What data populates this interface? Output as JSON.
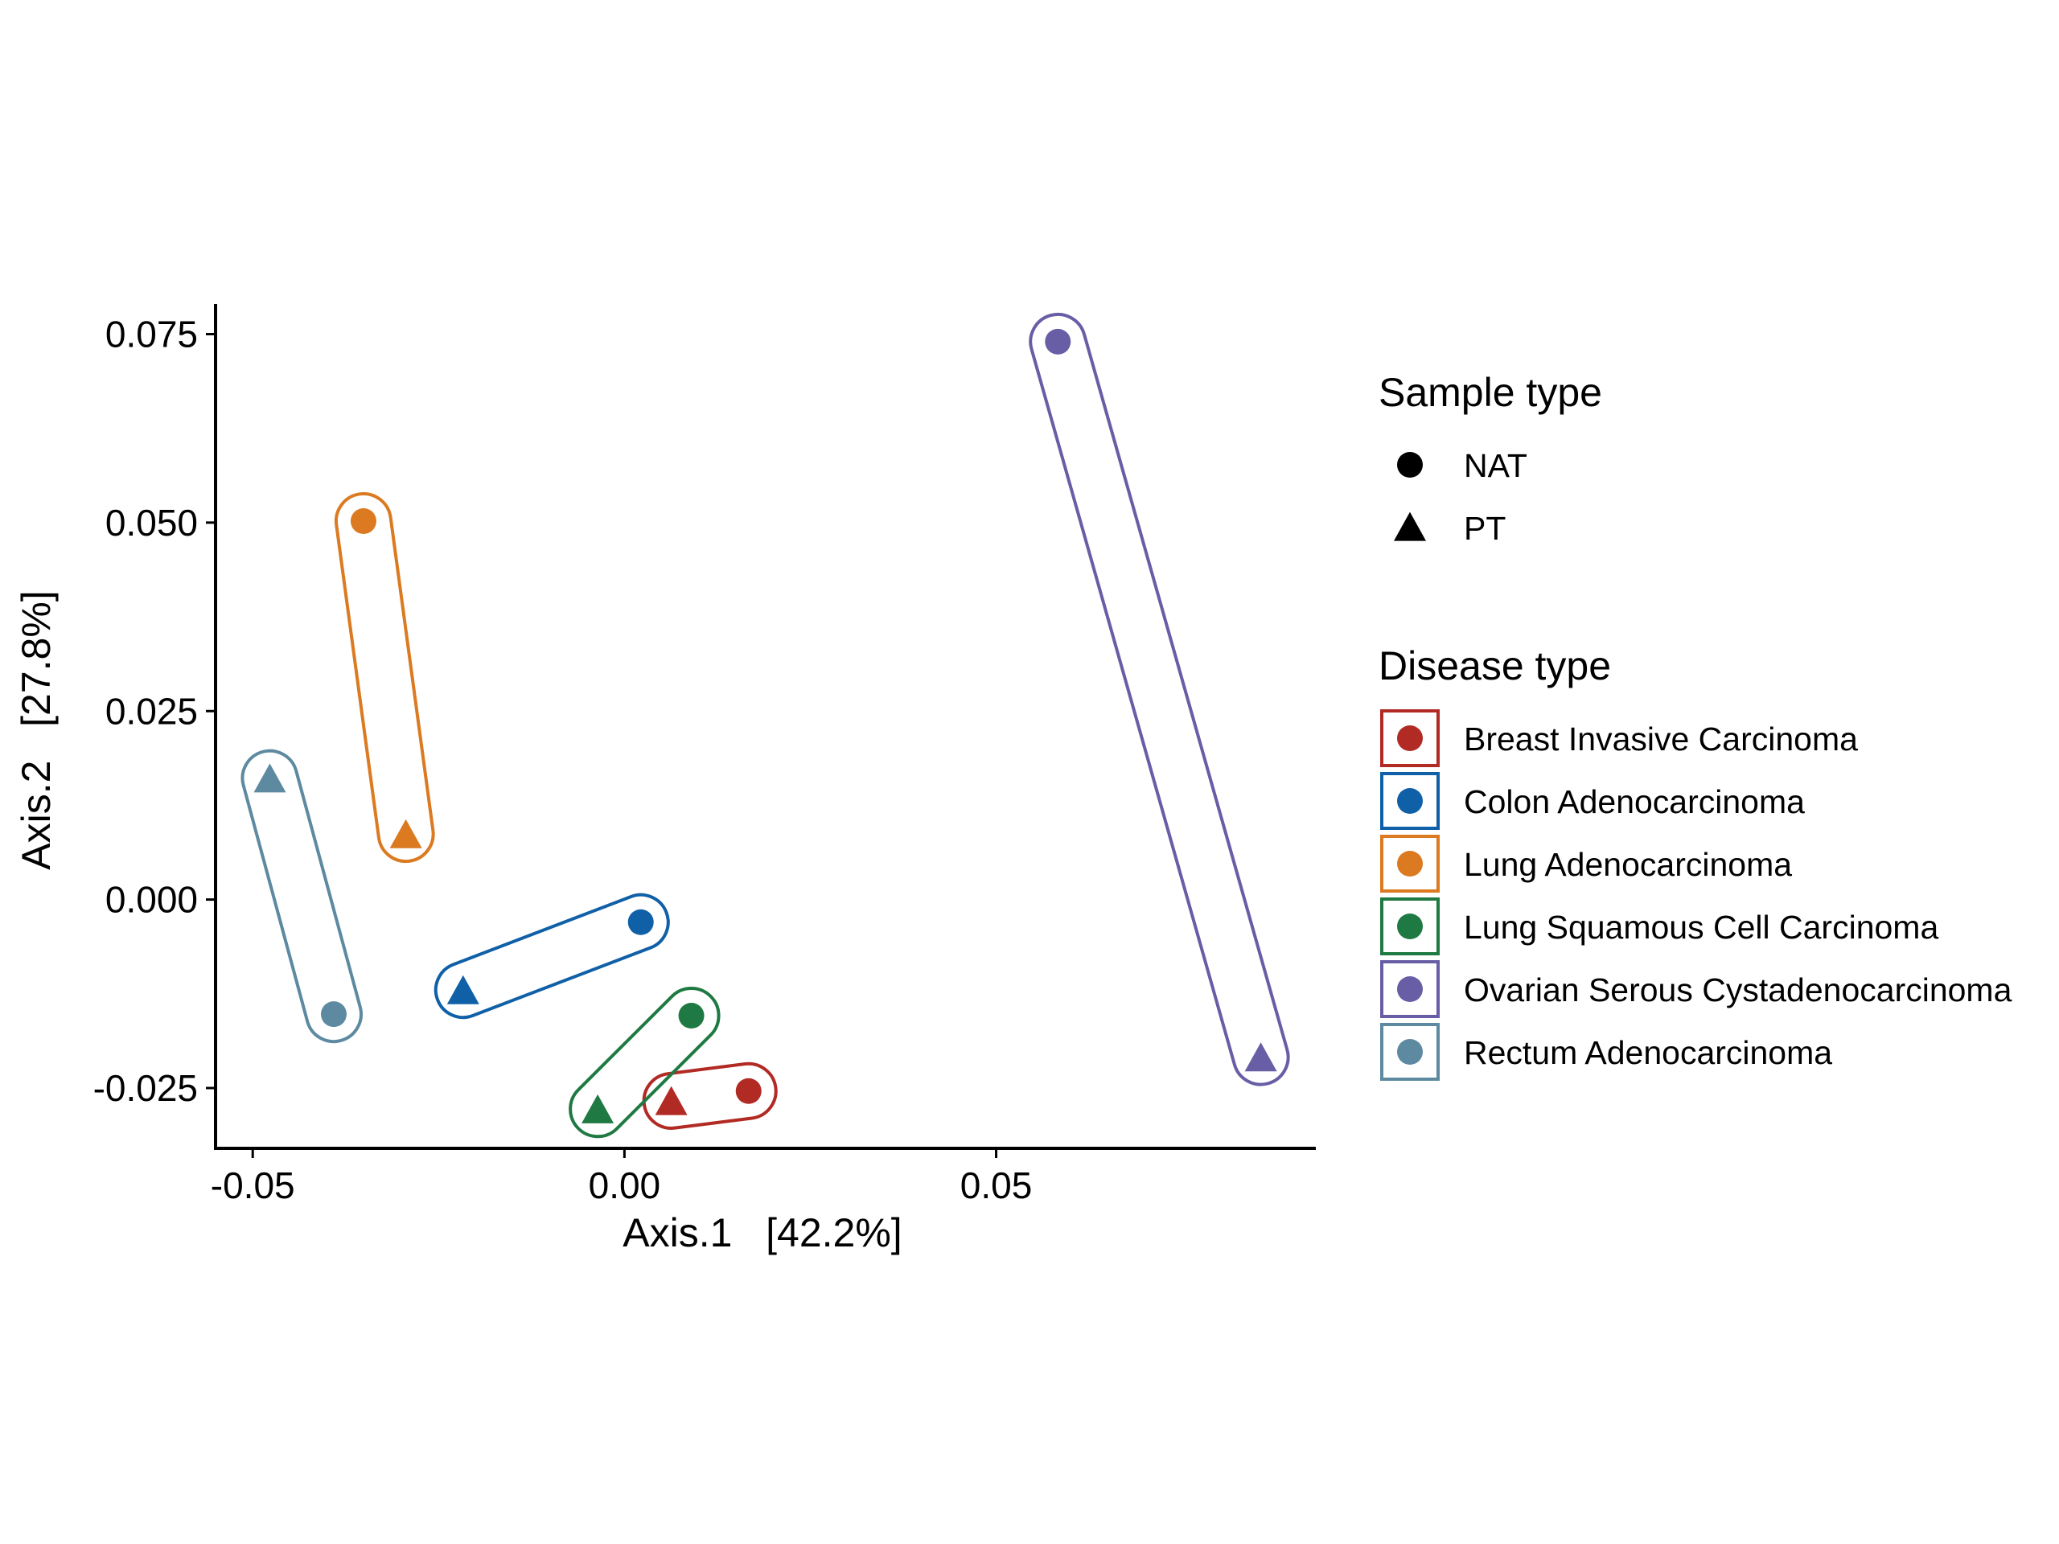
{
  "chart_data": {
    "type": "scatter",
    "xlabel": "Axis.1   [42.2%]",
    "ylabel": "Axis.2   [27.8%]",
    "xlim": [
      -0.055,
      0.093
    ],
    "ylim": [
      -0.033,
      0.079
    ],
    "x_ticks": [
      -0.05,
      0.0,
      0.05
    ],
    "x_tick_labels": [
      "-0.05",
      "0.00",
      "0.05"
    ],
    "y_ticks": [
      -0.025,
      0.0,
      0.025,
      0.05,
      0.075
    ],
    "y_tick_labels": [
      "-0.025",
      "0.000",
      "0.025",
      "0.050",
      "0.075"
    ],
    "grid": false,
    "series": [
      {
        "name": "Breast Invasive Carcinoma",
        "color": "#B22A24",
        "points": [
          {
            "sample": "NAT",
            "x": 0.0167,
            "y": -0.0254
          },
          {
            "sample": "PT",
            "x": 0.0063,
            "y": -0.0267
          }
        ]
      },
      {
        "name": "Colon Adenocarcinoma",
        "color": "#1060A8",
        "points": [
          {
            "sample": "NAT",
            "x": 0.0022,
            "y": -0.003
          },
          {
            "sample": "PT",
            "x": -0.0217,
            "y": -0.012
          }
        ]
      },
      {
        "name": "Lung Adenocarcinoma",
        "color": "#DB7A20",
        "points": [
          {
            "sample": "NAT",
            "x": -0.0351,
            "y": 0.0502
          },
          {
            "sample": "PT",
            "x": -0.0294,
            "y": 0.0087
          }
        ]
      },
      {
        "name": "Lung Squamous Cell Carcinoma",
        "color": "#1E7A42",
        "points": [
          {
            "sample": "NAT",
            "x": 0.009,
            "y": -0.0154
          },
          {
            "sample": "PT",
            "x": -0.0036,
            "y": -0.0278
          }
        ]
      },
      {
        "name": "Ovarian Serous Cystadenocarcinoma",
        "color": "#675EA6",
        "points": [
          {
            "sample": "NAT",
            "x": 0.0583,
            "y": 0.074
          },
          {
            "sample": "PT",
            "x": 0.0856,
            "y": -0.0209
          }
        ]
      },
      {
        "name": "Rectum Adenocarcinoma",
        "color": "#5D8AA0",
        "points": [
          {
            "sample": "NAT",
            "x": -0.0391,
            "y": -0.0152
          },
          {
            "sample": "PT",
            "x": -0.0477,
            "y": 0.0161
          }
        ]
      }
    ],
    "legends": [
      {
        "title": "Sample type",
        "entries": [
          {
            "label": "NAT",
            "shape": "circle"
          },
          {
            "label": "PT",
            "shape": "triangle"
          }
        ]
      },
      {
        "title": "Disease type",
        "entries": [
          {
            "label": "Breast Invasive Carcinoma",
            "color": "#B22A24"
          },
          {
            "label": "Colon Adenocarcinoma",
            "color": "#1060A8"
          },
          {
            "label": "Lung Adenocarcinoma",
            "color": "#DB7A20"
          },
          {
            "label": "Lung Squamous Cell Carcinoma",
            "color": "#1E7A42"
          },
          {
            "label": "Ovarian Serous Cystadenocarcinoma",
            "color": "#675EA6"
          },
          {
            "label": "Rectum Adenocarcinoma",
            "color": "#5D8AA0"
          }
        ]
      }
    ],
    "legend_position": "right"
  }
}
